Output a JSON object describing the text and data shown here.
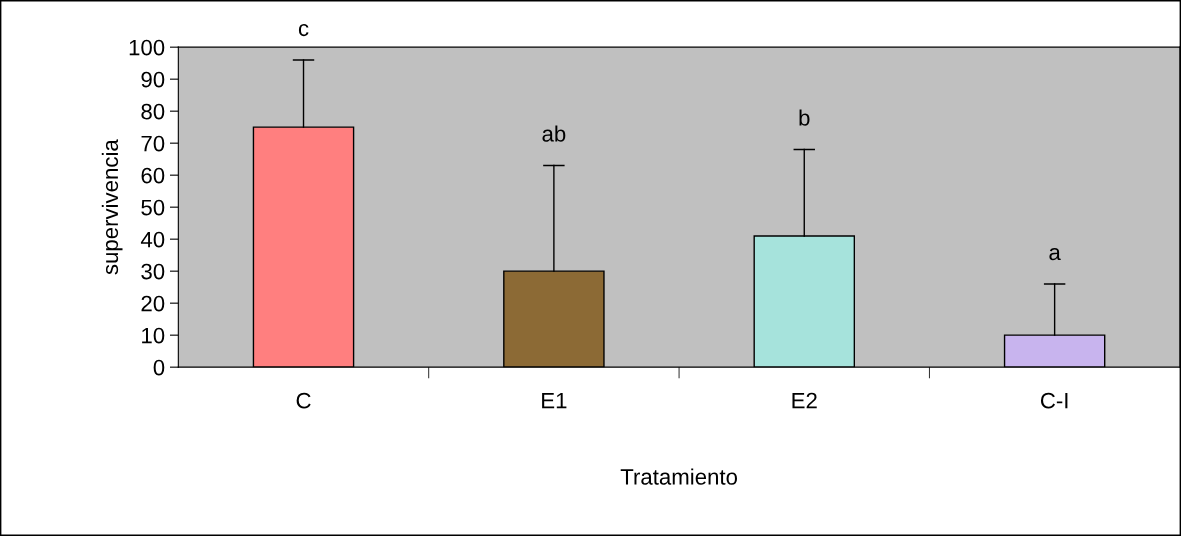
{
  "chart_data": {
    "type": "bar",
    "xlabel": "Tratamiento",
    "ylabel": "supervivencia",
    "categories": [
      "C",
      "E1",
      "E2",
      "C-I"
    ],
    "values": [
      75,
      30,
      41,
      10
    ],
    "colors": [
      "#ff7f7f",
      "#8c6a35",
      "#a6e3dc",
      "#c8b4ee"
    ],
    "errors": [
      [
        75,
        96
      ],
      [
        30,
        63
      ],
      [
        41,
        68
      ],
      [
        10,
        26
      ]
    ],
    "ylim": [
      0,
      100
    ],
    "yticks": [
      0,
      10,
      20,
      30,
      40,
      50,
      60,
      70,
      80,
      90,
      100
    ],
    "annotations": [
      "c",
      "ab",
      "b",
      "a"
    ],
    "grid": false,
    "legend": false
  }
}
